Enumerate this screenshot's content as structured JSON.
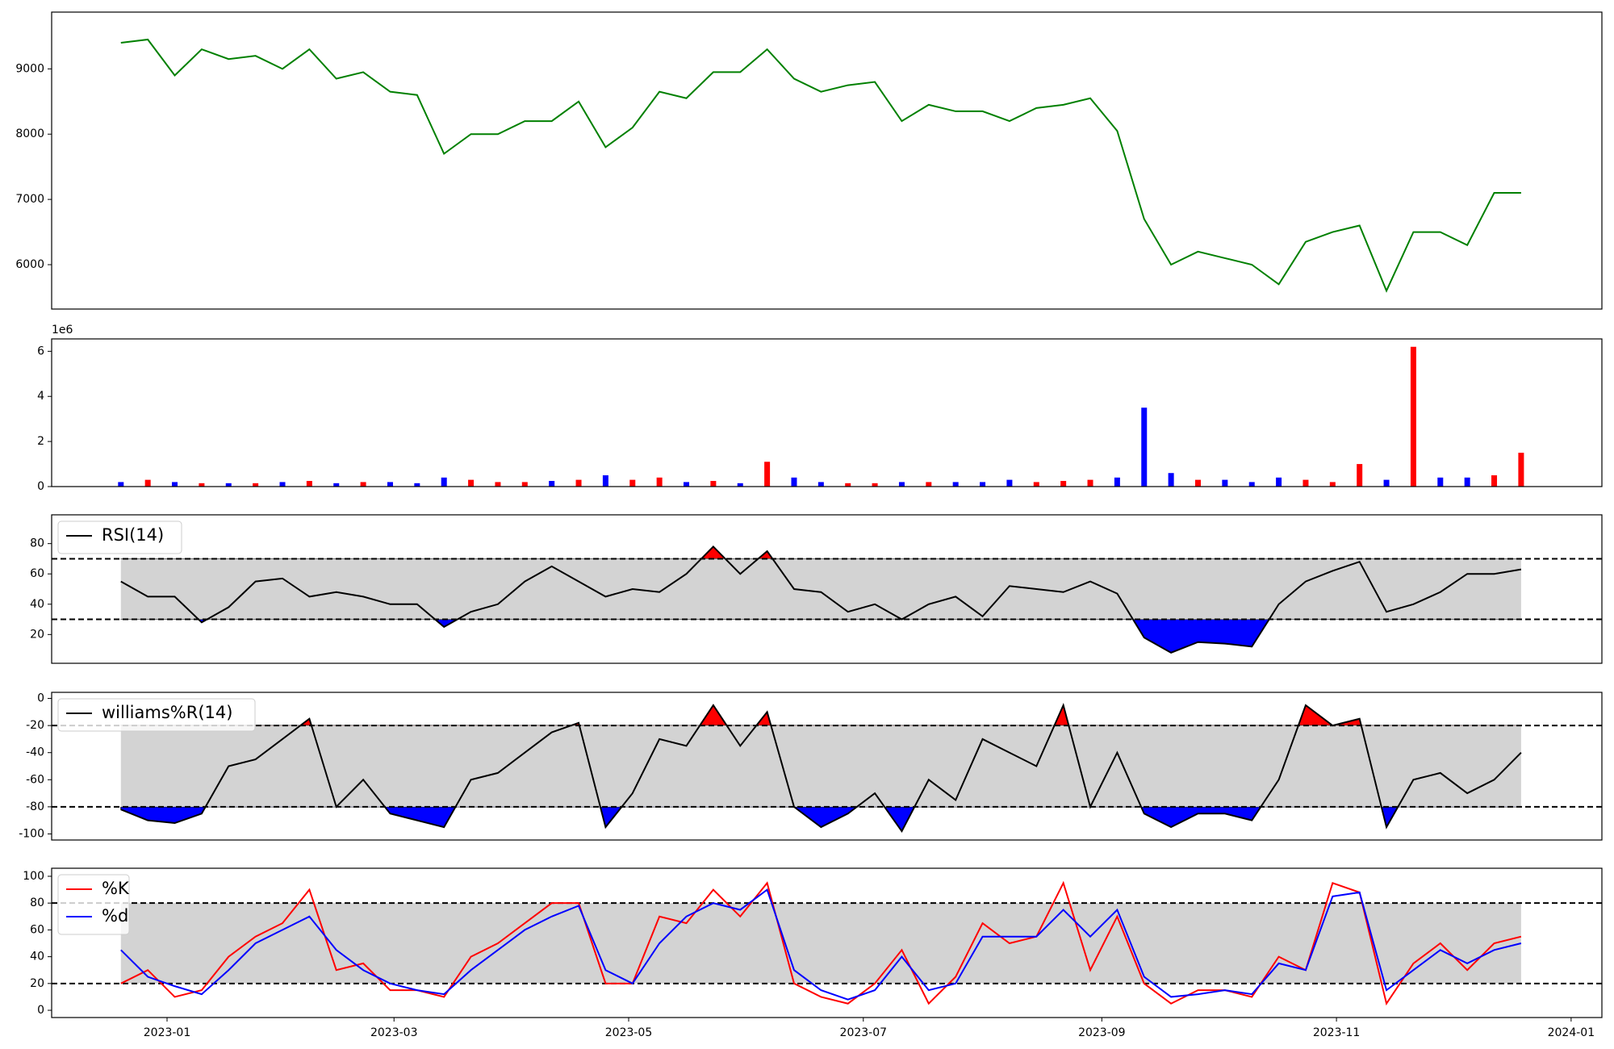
{
  "chart_data": [
    {
      "type": "line",
      "x": [
        -12,
        -5,
        2,
        9,
        16,
        23,
        30,
        37,
        44,
        51,
        58,
        65,
        72,
        79,
        86,
        93,
        100,
        107,
        114,
        121,
        128,
        135,
        142,
        149,
        156,
        163,
        170,
        177,
        184,
        191,
        198,
        205,
        212,
        219,
        226,
        233,
        240,
        247,
        254,
        261,
        268,
        275,
        282,
        289,
        296,
        303,
        310,
        317,
        324,
        331,
        338,
        345,
        352
      ],
      "series": [
        {
          "color": "green",
          "values": [
            9400,
            9450,
            8900,
            9300,
            9150,
            9200,
            9000,
            9300,
            8850,
            8950,
            8650,
            8600,
            7700,
            8000,
            8000,
            8200,
            8200,
            8500,
            7800,
            8100,
            8650,
            8550,
            8950,
            8950,
            9300,
            8850,
            8650,
            8750,
            8800,
            8200,
            8450,
            8350,
            8350,
            8200,
            8400,
            8450,
            8550,
            8050,
            6700,
            6000,
            6200,
            6100,
            6000,
            5700,
            6350,
            6500,
            6600,
            5600,
            6500,
            6500,
            6300,
            7100,
            7100
          ]
        }
      ],
      "xlim": [
        -30,
        373
      ],
      "ylim": [
        5320,
        9870
      ],
      "yticks": [
        6000,
        7000,
        8000,
        9000
      ]
    },
    {
      "type": "bar",
      "x": [
        -12,
        -5,
        2,
        9,
        16,
        23,
        30,
        37,
        44,
        51,
        58,
        65,
        72,
        79,
        86,
        93,
        100,
        107,
        114,
        121,
        128,
        135,
        142,
        149,
        156,
        163,
        170,
        177,
        184,
        191,
        198,
        205,
        212,
        219,
        226,
        233,
        240,
        247,
        254,
        261,
        268,
        275,
        282,
        289,
        296,
        303,
        310,
        317,
        324,
        331,
        338,
        345,
        352
      ],
      "values": [
        0.2,
        0.3,
        0.2,
        0.15,
        0.15,
        0.15,
        0.2,
        0.25,
        0.15,
        0.2,
        0.2,
        0.15,
        0.4,
        0.3,
        0.2,
        0.2,
        0.25,
        0.3,
        0.5,
        0.3,
        0.4,
        0.2,
        0.25,
        0.15,
        1.1,
        0.4,
        0.2,
        0.15,
        0.15,
        0.2,
        0.2,
        0.2,
        0.2,
        0.3,
        0.2,
        0.25,
        0.3,
        0.4,
        3.5,
        0.6,
        0.3,
        0.3,
        0.2,
        0.4,
        0.3,
        0.2,
        1.0,
        0.3,
        6.2,
        0.4,
        0.4,
        0.5,
        1.5
      ],
      "colors": [
        "blue",
        "red",
        "blue",
        "red",
        "blue",
        "red",
        "blue",
        "red",
        "blue",
        "red",
        "blue",
        "blue",
        "blue",
        "red",
        "red",
        "red",
        "blue",
        "red",
        "blue",
        "red",
        "red",
        "blue",
        "red",
        "blue",
        "red",
        "blue",
        "blue",
        "red",
        "red",
        "blue",
        "red",
        "blue",
        "blue",
        "blue",
        "red",
        "red",
        "red",
        "blue",
        "blue",
        "blue",
        "red",
        "blue",
        "blue",
        "blue",
        "red",
        "red",
        "red",
        "blue",
        "red",
        "blue",
        "blue",
        "red",
        "red"
      ],
      "offset_label": "1e6",
      "xlim": [
        -30,
        373
      ],
      "ylim": [
        0,
        6.55
      ],
      "yticks": [
        0,
        2,
        4,
        6
      ]
    },
    {
      "type": "oscillator",
      "x": [
        -12,
        -5,
        2,
        9,
        16,
        23,
        30,
        37,
        44,
        51,
        58,
        65,
        72,
        79,
        86,
        93,
        100,
        107,
        114,
        121,
        128,
        135,
        142,
        149,
        156,
        163,
        170,
        177,
        184,
        191,
        198,
        205,
        212,
        219,
        226,
        233,
        240,
        247,
        254,
        261,
        268,
        275,
        282,
        289,
        296,
        303,
        310,
        317,
        324,
        331,
        338,
        345,
        352
      ],
      "series": [
        {
          "name": "RSI(14)",
          "color": "black",
          "values": [
            55,
            45,
            45,
            28,
            38,
            55,
            57,
            45,
            48,
            45,
            40,
            40,
            25,
            35,
            40,
            55,
            65,
            55,
            45,
            50,
            48,
            60,
            78,
            60,
            75,
            50,
            48,
            35,
            40,
            30,
            40,
            45,
            32,
            52,
            50,
            48,
            55,
            47,
            18,
            8,
            15,
            14,
            12,
            40,
            55,
            62,
            68,
            35,
            40,
            48,
            60,
            60,
            63
          ]
        }
      ],
      "levels": [
        30,
        70
      ],
      "band_color": "lightgray",
      "upper_fill": "red",
      "lower_fill": "blue",
      "xlim": [
        -30,
        373
      ],
      "ylim": [
        1,
        99
      ],
      "yticks": [
        20,
        40,
        60,
        80
      ]
    },
    {
      "type": "oscillator",
      "x": [
        -12,
        -5,
        2,
        9,
        16,
        23,
        30,
        37,
        44,
        51,
        58,
        65,
        72,
        79,
        86,
        93,
        100,
        107,
        114,
        121,
        128,
        135,
        142,
        149,
        156,
        163,
        170,
        177,
        184,
        191,
        198,
        205,
        212,
        219,
        226,
        233,
        240,
        247,
        254,
        261,
        268,
        275,
        282,
        289,
        296,
        303,
        310,
        317,
        324,
        331,
        338,
        345,
        352
      ],
      "series": [
        {
          "name": "williams%R(14)",
          "color": "black",
          "values": [
            -82,
            -90,
            -92,
            -85,
            -50,
            -45,
            -30,
            -15,
            -80,
            -60,
            -85,
            -90,
            -95,
            -60,
            -55,
            -40,
            -25,
            -18,
            -95,
            -70,
            -30,
            -35,
            -5,
            -35,
            -10,
            -80,
            -95,
            -85,
            -70,
            -98,
            -60,
            -75,
            -30,
            -40,
            -50,
            -5,
            -80,
            -40,
            -85,
            -95,
            -85,
            -85,
            -90,
            -60,
            -5,
            -20,
            -15,
            -95,
            -60,
            -55,
            -70,
            -60,
            -40
          ]
        }
      ],
      "levels": [
        -80,
        -20
      ],
      "band_color": "lightgray",
      "upper_fill": "red",
      "lower_fill": "blue",
      "xlim": [
        -30,
        373
      ],
      "ylim": [
        -104.5,
        4.5
      ],
      "yticks": [
        -100,
        -80,
        -60,
        -40,
        -20,
        0
      ]
    },
    {
      "type": "oscillator",
      "x": [
        -12,
        -5,
        2,
        9,
        16,
        23,
        30,
        37,
        44,
        51,
        58,
        65,
        72,
        79,
        86,
        93,
        100,
        107,
        114,
        121,
        128,
        135,
        142,
        149,
        156,
        163,
        170,
        177,
        184,
        191,
        198,
        205,
        212,
        219,
        226,
        233,
        240,
        247,
        254,
        261,
        268,
        275,
        282,
        289,
        296,
        303,
        310,
        317,
        324,
        331,
        338,
        345,
        352
      ],
      "series": [
        {
          "name": "%K",
          "color": "red",
          "values": [
            20,
            30,
            10,
            15,
            40,
            55,
            65,
            90,
            30,
            35,
            15,
            15,
            10,
            40,
            50,
            65,
            80,
            80,
            20,
            20,
            70,
            65,
            90,
            70,
            95,
            20,
            10,
            5,
            20,
            45,
            5,
            25,
            65,
            50,
            55,
            95,
            30,
            70,
            20,
            5,
            15,
            15,
            10,
            40,
            30,
            95,
            88,
            5,
            35,
            50,
            30,
            50,
            55
          ]
        },
        {
          "name": "%d",
          "color": "blue",
          "values": [
            45,
            25,
            18,
            12,
            30,
            50,
            60,
            70,
            45,
            30,
            20,
            15,
            12,
            30,
            45,
            60,
            70,
            78,
            30,
            20,
            50,
            70,
            80,
            75,
            90,
            30,
            15,
            8,
            15,
            40,
            15,
            20,
            55,
            55,
            55,
            75,
            55,
            75,
            25,
            10,
            12,
            15,
            12,
            35,
            30,
            85,
            88,
            15,
            30,
            45,
            35,
            45,
            50
          ]
        }
      ],
      "levels": [
        20,
        80
      ],
      "band_color": "lightgray",
      "xlim": [
        -30,
        373
      ],
      "ylim": [
        -5.4,
        106
      ],
      "yticks": [
        0,
        20,
        40,
        60,
        80,
        100
      ],
      "xticks": [
        {
          "value": 0,
          "label": "2023-01"
        },
        {
          "value": 59,
          "label": "2023-03"
        },
        {
          "value": 120,
          "label": "2023-05"
        },
        {
          "value": 181,
          "label": "2023-07"
        },
        {
          "value": 243,
          "label": "2023-09"
        },
        {
          "value": 304,
          "label": "2023-11"
        },
        {
          "value": 365,
          "label": "2024-01"
        }
      ]
    }
  ]
}
